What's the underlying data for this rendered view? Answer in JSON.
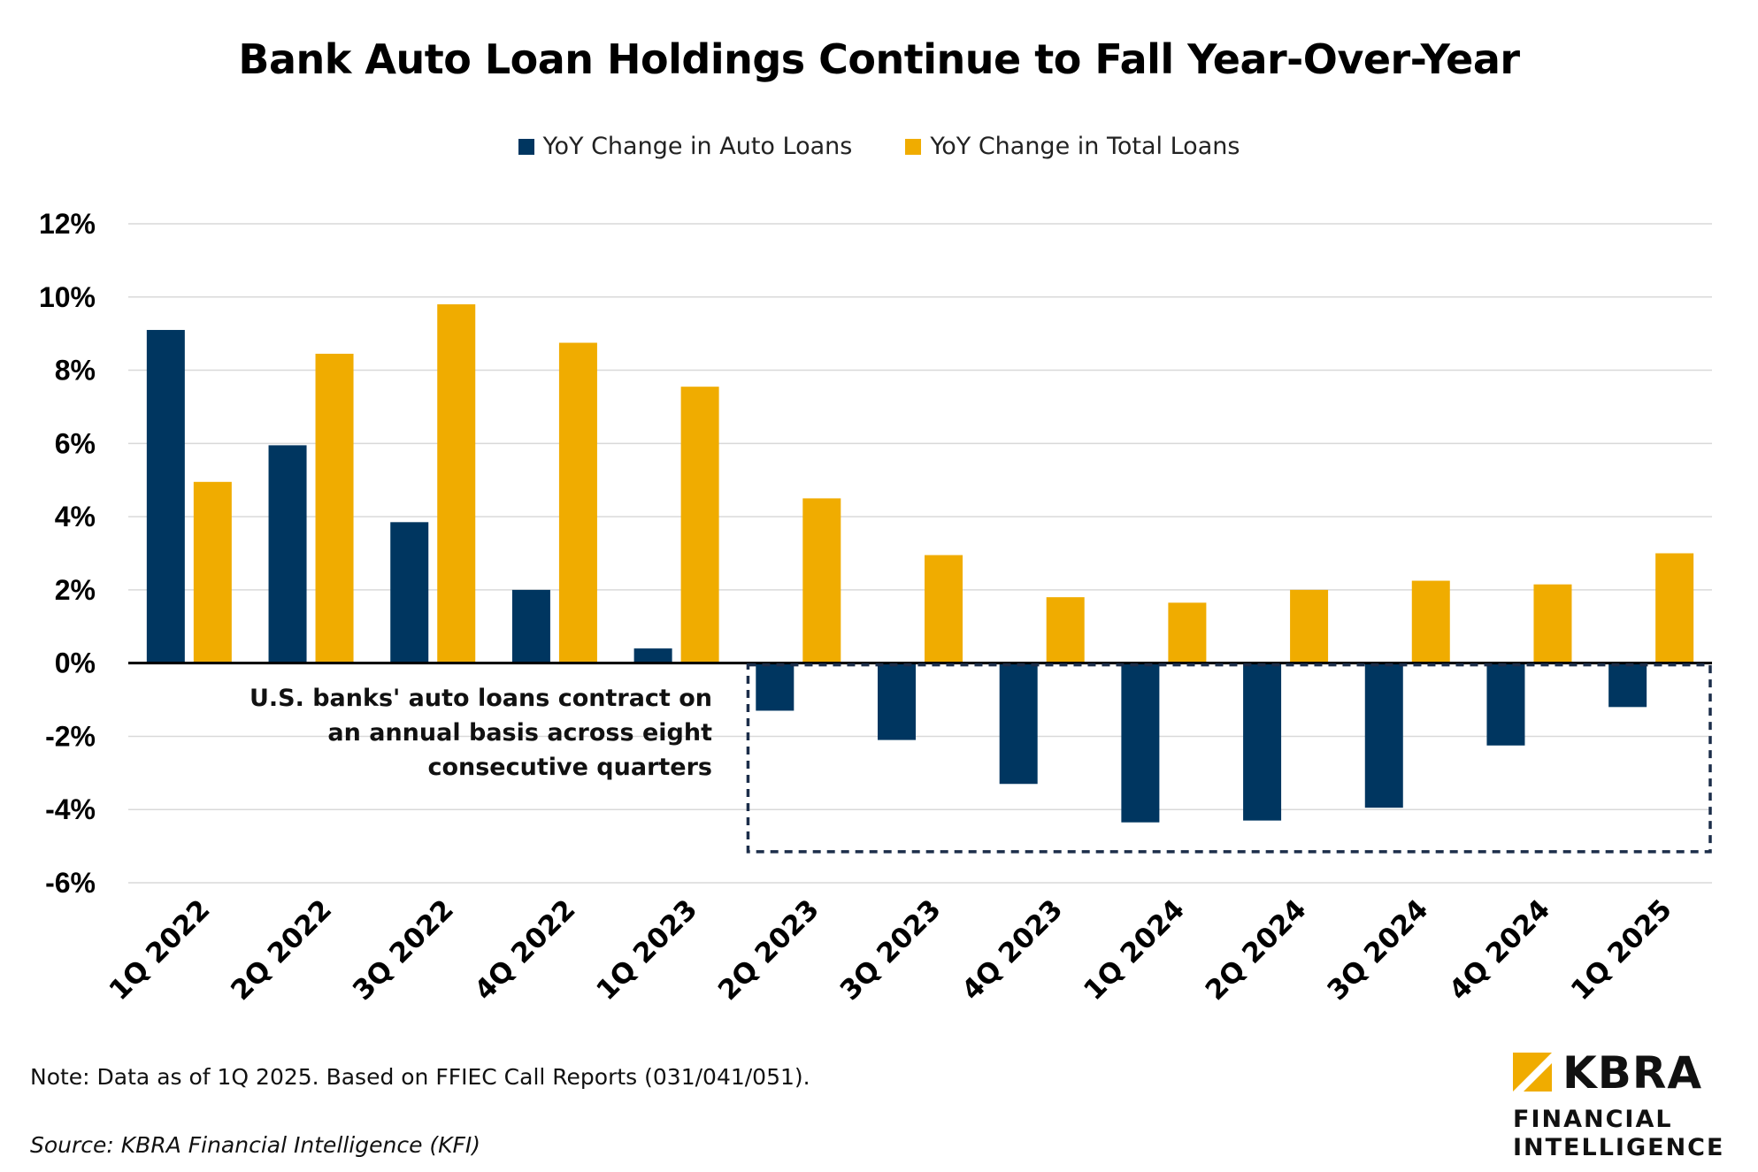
{
  "title": "Bank Auto Loan Holdings Continue to Fall Year-Over-Year",
  "colors": {
    "auto": "#003660",
    "total": "#F0AC00",
    "grid": "#d9d9d9",
    "box": "#1c2e4a"
  },
  "chart_data": {
    "type": "bar",
    "categories": [
      "1Q 2022",
      "2Q 2022",
      "3Q 2022",
      "4Q 2022",
      "1Q 2023",
      "2Q 2023",
      "3Q 2023",
      "4Q 2023",
      "1Q 2024",
      "2Q 2024",
      "3Q 2024",
      "4Q 2024",
      "1Q 2025"
    ],
    "series": [
      {
        "name": "YoY Change in Auto Loans",
        "values": [
          9.1,
          5.95,
          3.85,
          2.0,
          0.4,
          -1.3,
          -2.1,
          -3.3,
          -4.35,
          -4.3,
          -3.95,
          -2.25,
          -1.2
        ]
      },
      {
        "name": "YoY Change in Total Loans",
        "values": [
          4.95,
          8.45,
          9.8,
          8.75,
          7.55,
          4.5,
          2.95,
          1.8,
          1.65,
          2.0,
          2.25,
          2.15,
          3.0
        ]
      }
    ],
    "ylim": [
      -6,
      12
    ],
    "yticks": [
      12,
      10,
      8,
      6,
      4,
      2,
      0,
      -2,
      -4,
      -6
    ],
    "ytick_labels": [
      "12%",
      "10%",
      "8%",
      "6%",
      "4%",
      "2%",
      "0%",
      "-2%",
      "-4%",
      "-6%"
    ],
    "grid": true,
    "legend_position": "top-center",
    "annotation": {
      "lines": [
        "U.S. banks' auto loans contract on",
        "an annual basis across eight",
        "consecutive quarters"
      ],
      "highlight_from": "2Q 2023",
      "highlight_to": "1Q 2025"
    }
  },
  "footnote": "Note: Data as of 1Q 2025. Based on FFIEC Call Reports (031/041/051).",
  "source": "Source: KBRA Financial Intelligence (KFI)",
  "logo": {
    "word": "KBRA",
    "line1": "FINANCIAL",
    "line2": "INTELLIGENCE"
  }
}
